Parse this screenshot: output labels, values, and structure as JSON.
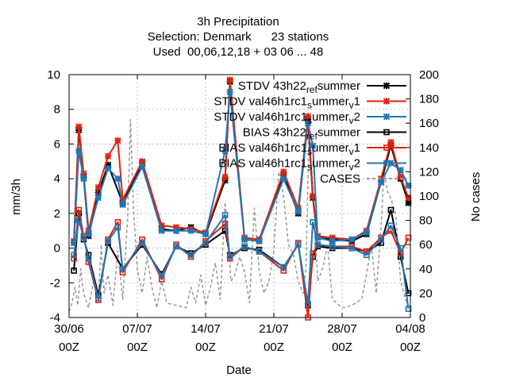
{
  "chart_data": {
    "type": "line",
    "title_lines": [
      "3h Precipitation",
      "Selection: Denmark      23 stations",
      "Used  00,06,12,18 + 03 06 ... 48"
    ],
    "xlabel": "Date",
    "ylabel": "mm/3h",
    "y2label": "No cases",
    "x_range": [
      "2022-06-30T00:00",
      "2022-08-04T00:00"
    ],
    "ylim": [
      -4,
      10
    ],
    "y2lim": [
      0,
      200
    ],
    "x_ticks": [
      {
        "label_top": "30/06",
        "label_bottom": "00Z",
        "date": "2022-06-30T00:00"
      },
      {
        "label_top": "07/07",
        "label_bottom": "00Z",
        "date": "2022-07-07T00:00"
      },
      {
        "label_top": "14/07",
        "label_bottom": "00Z",
        "date": "2022-07-14T00:00"
      },
      {
        "label_top": "21/07",
        "label_bottom": "00Z",
        "date": "2022-07-21T00:00"
      },
      {
        "label_top": "28/07",
        "label_bottom": "00Z",
        "date": "2022-07-28T00:00"
      },
      {
        "label_top": "04/08",
        "label_bottom": "00Z",
        "date": "2022-08-04T00:00"
      }
    ],
    "y_ticks": [
      "-4",
      "-2",
      "0",
      "2",
      "4",
      "6",
      "8",
      "10"
    ],
    "y2_ticks": [
      "0",
      "20",
      "40",
      "60",
      "80",
      "100",
      "120",
      "140",
      "160",
      "180",
      "200"
    ],
    "grid": true,
    "legend_position": "top-right",
    "series": [
      {
        "name": "STDV 43h22 ref summer",
        "legend_parts": [
          [
            "STDV 43h22",
            "n"
          ],
          [
            "ref",
            "s"
          ],
          [
            "s",
            "n"
          ],
          [
            "ummer",
            "n"
          ]
        ],
        "color": "#000000",
        "marker": "x-star",
        "axis": "y",
        "days": [
          0.5,
          1.0,
          1.5,
          2.0,
          3.0,
          4.0,
          5.5,
          7.5,
          9.5,
          11.0,
          12.5,
          14.0,
          16.0,
          16.5,
          18.0,
          19.5,
          22.0,
          23.5,
          24.5,
          25.0,
          25.5,
          27.0,
          29.0,
          30.5,
          32.0,
          33.0,
          34.0,
          34.8
        ],
        "values": [
          0.3,
          6.8,
          4.1,
          0.7,
          3.2,
          4.8,
          2.6,
          4.9,
          1.1,
          1.0,
          1.2,
          0.8,
          3.9,
          9.6,
          0.5,
          0.4,
          4.2,
          2.0,
          7.4,
          2.9,
          0.6,
          0.5,
          0.4,
          0.8,
          3.8,
          5.9,
          4.0,
          2.6
        ]
      },
      {
        "name": "STDV val46h1rc1 summer v1",
        "legend_parts": [
          [
            "STDV val46h1rc1",
            "n"
          ],
          [
            "s",
            "s"
          ],
          [
            "ummer",
            "n"
          ],
          [
            "v",
            "s"
          ],
          [
            "1",
            "n"
          ]
        ],
        "color": "#e0220f",
        "marker": "x-star",
        "axis": "y",
        "days": [
          0.5,
          1.0,
          1.5,
          2.0,
          3.0,
          4.0,
          5.0,
          5.5,
          7.5,
          9.5,
          11.0,
          12.5,
          14.0,
          16.0,
          16.5,
          18.0,
          19.5,
          22.0,
          23.5,
          24.5,
          25.0,
          25.5,
          27.0,
          29.0,
          30.5,
          32.0,
          33.0,
          34.0,
          34.8
        ],
        "values": [
          0.4,
          7.0,
          4.3,
          1.0,
          3.5,
          5.3,
          6.2,
          2.8,
          5.0,
          1.3,
          1.2,
          1.1,
          0.9,
          4.1,
          9.7,
          0.6,
          0.5,
          4.4,
          2.3,
          7.6,
          3.0,
          0.7,
          0.6,
          0.5,
          1.0,
          4.0,
          6.1,
          4.1,
          2.9
        ]
      },
      {
        "name": "STDV val46h1rc1 summer v2",
        "legend_parts": [
          [
            "STDV val46h1rc1",
            "n"
          ],
          [
            "s",
            "s"
          ],
          [
            "ummer",
            "n"
          ],
          [
            "v",
            "s"
          ],
          [
            "2",
            "n"
          ]
        ],
        "color": "#1f78b4",
        "marker": "x-star",
        "axis": "y",
        "days": [
          0.5,
          1.0,
          1.5,
          2.0,
          3.0,
          4.0,
          5.0,
          5.5,
          7.5,
          9.5,
          11.0,
          12.5,
          14.0,
          16.0,
          16.5,
          18.0,
          19.5,
          22.0,
          23.5,
          24.5,
          25.0,
          25.5,
          27.0,
          29.0,
          30.5,
          32.0,
          33.0,
          34.0,
          34.8
        ],
        "values": [
          0.3,
          5.6,
          4.0,
          0.8,
          2.9,
          4.6,
          4.0,
          2.5,
          4.7,
          1.0,
          1.0,
          1.0,
          0.8,
          5.6,
          9.0,
          0.5,
          0.4,
          4.0,
          2.1,
          7.2,
          5.9,
          0.6,
          0.4,
          0.5,
          0.9,
          3.8,
          4.9,
          4.5,
          3.6
        ]
      },
      {
        "name": "BIAS 43h22 ref summer",
        "legend_parts": [
          [
            "BIAS 43h22",
            "n"
          ],
          [
            "ref",
            "s"
          ],
          [
            "s",
            "n"
          ],
          [
            "ummer",
            "n"
          ]
        ],
        "color": "#000000",
        "marker": "square",
        "axis": "y",
        "days": [
          0.5,
          1.0,
          1.5,
          2.0,
          3.0,
          4.0,
          5.5,
          7.5,
          9.5,
          11.0,
          12.5,
          14.0,
          16.0,
          16.5,
          18.0,
          19.5,
          22.0,
          23.5,
          24.5,
          25.0,
          25.5,
          27.0,
          29.0,
          30.5,
          32.0,
          33.0,
          34.0,
          34.8
        ],
        "values": [
          -1.3,
          2.0,
          0.5,
          -0.4,
          -2.7,
          0.3,
          -1.2,
          0.2,
          -1.5,
          0.1,
          -0.3,
          0.2,
          1.0,
          -0.4,
          0.0,
          -0.1,
          -1.1,
          0.2,
          -3.3,
          -0.5,
          0.1,
          0.0,
          0.0,
          -0.2,
          0.3,
          2.2,
          -0.5,
          -2.6
        ]
      },
      {
        "name": "BIAS val46h1rc1 summer v1",
        "legend_parts": [
          [
            "BIAS val46h1rc1",
            "n"
          ],
          [
            "s",
            "s"
          ],
          [
            "ummer",
            "n"
          ],
          [
            "v",
            "s"
          ],
          [
            "1",
            "n"
          ]
        ],
        "color": "#e0220f",
        "marker": "square",
        "axis": "y",
        "days": [
          0.5,
          1.0,
          1.5,
          2.0,
          3.0,
          4.0,
          5.0,
          5.5,
          7.5,
          9.5,
          11.0,
          12.5,
          14.0,
          16.0,
          16.5,
          18.0,
          19.5,
          22.0,
          23.5,
          24.5,
          25.0,
          25.5,
          27.0,
          29.0,
          30.5,
          32.0,
          33.0,
          34.0,
          34.8
        ],
        "values": [
          -0.6,
          2.2,
          0.7,
          -0.8,
          -3.0,
          0.5,
          1.5,
          -1.4,
          0.5,
          -1.8,
          0.2,
          -0.5,
          0.4,
          1.4,
          -0.6,
          0.1,
          -0.2,
          -1.3,
          0.3,
          -4.0,
          -0.3,
          0.2,
          0.1,
          0.1,
          -0.2,
          0.6,
          1.0,
          -0.3,
          0.6
        ]
      },
      {
        "name": "BIAS val46h1rc1 summer v2",
        "legend_parts": [
          [
            "BIAS val46h1rc1",
            "n"
          ],
          [
            "s",
            "s"
          ],
          [
            "ummer",
            "n"
          ],
          [
            "v",
            "s"
          ],
          [
            "2",
            "n"
          ]
        ],
        "color": "#1f78b4",
        "marker": "square",
        "axis": "y",
        "days": [
          0.5,
          1.0,
          1.5,
          2.0,
          3.0,
          4.0,
          5.0,
          5.5,
          7.5,
          9.5,
          11.0,
          12.5,
          14.0,
          16.0,
          16.5,
          18.0,
          19.5,
          22.0,
          23.5,
          24.5,
          25.0,
          25.5,
          27.0,
          29.0,
          30.5,
          32.0,
          33.0,
          34.0,
          34.8
        ],
        "values": [
          -0.4,
          1.6,
          0.6,
          -0.6,
          -2.9,
          0.4,
          1.2,
          -1.2,
          0.3,
          -1.6,
          0.1,
          -0.4,
          0.3,
          1.9,
          -0.5,
          0.1,
          -0.2,
          -1.1,
          0.2,
          -3.2,
          1.5,
          0.2,
          0.1,
          0.0,
          -0.4,
          0.5,
          1.3,
          0.0,
          -3.5
        ]
      },
      {
        "name": "CASES",
        "legend_parts": [
          [
            "CASES",
            "n"
          ]
        ],
        "color": "#999999",
        "marker": "none",
        "dashed": true,
        "axis": "y2",
        "days": [
          0.0,
          0.3,
          0.6,
          0.9,
          1.2,
          1.5,
          2.0,
          2.5,
          3.0,
          3.3,
          3.6,
          4.0,
          4.5,
          5.0,
          5.5,
          6.0,
          6.3,
          6.6,
          7.0,
          7.5,
          8.0,
          8.5,
          9.0,
          9.5,
          10.0,
          11.0,
          12.0,
          12.5,
          13.0,
          13.5,
          14.0,
          14.5,
          15.0,
          15.5,
          16.0,
          16.3,
          16.6,
          17.0,
          17.5,
          18.0,
          18.5,
          19.0,
          19.5,
          20.0,
          20.5,
          21.0,
          21.5,
          22.0,
          22.5,
          23.0,
          23.5,
          24.0,
          24.3,
          24.6,
          25.0,
          25.5,
          26.0,
          26.5,
          27.0,
          28.0,
          29.0,
          30.0,
          30.5,
          31.0,
          31.5,
          32.0,
          32.3,
          32.6,
          33.0,
          33.5,
          34.0,
          34.5,
          35.0
        ],
        "values": [
          5,
          12,
          25,
          10,
          40,
          20,
          8,
          30,
          15,
          60,
          20,
          35,
          10,
          55,
          15,
          80,
          163,
          90,
          40,
          20,
          50,
          25,
          8,
          30,
          12,
          10,
          8,
          25,
          12,
          35,
          10,
          25,
          45,
          15,
          95,
          70,
          30,
          35,
          50,
          38,
          12,
          90,
          38,
          20,
          30,
          55,
          120,
          100,
          60,
          52,
          30,
          20,
          40,
          150,
          110,
          30,
          40,
          60,
          15,
          8,
          10,
          15,
          35,
          60,
          20,
          75,
          120,
          105,
          98,
          85,
          30,
          15,
          5
        ]
      }
    ]
  }
}
